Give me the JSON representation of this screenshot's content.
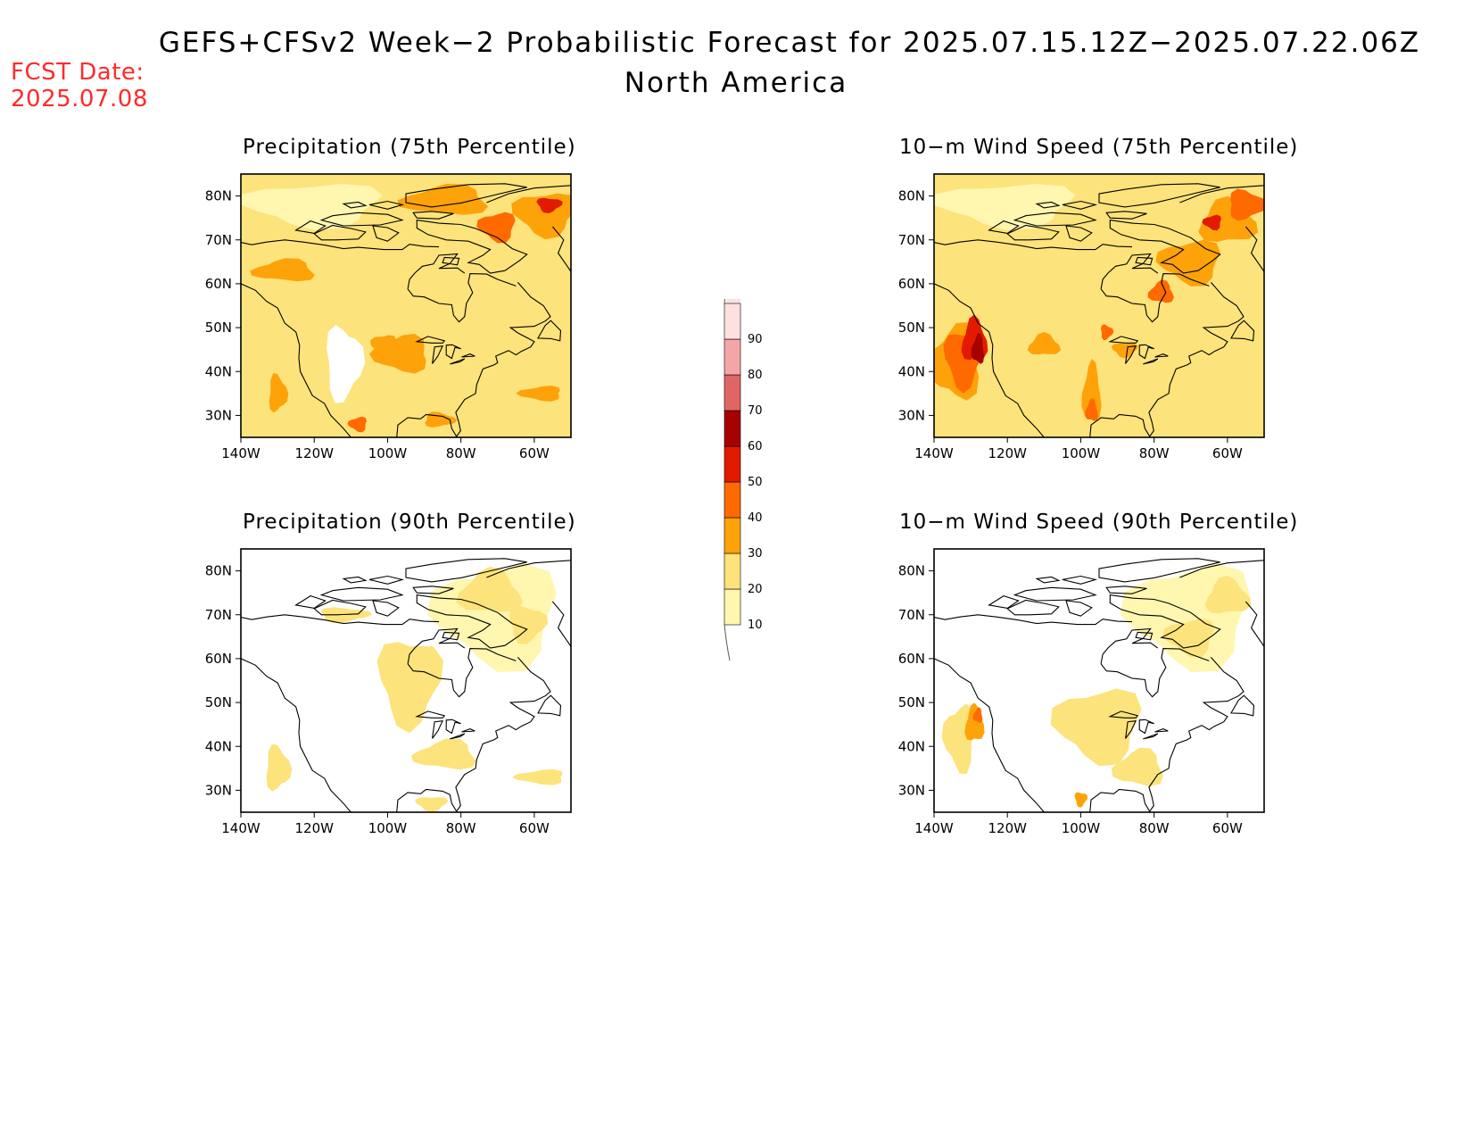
{
  "header": {
    "title": "GEFS+CFSv2 Week−2 Probabilistic Forecast for 2025.07.15.12Z−2025.07.22.06Z",
    "subtitle": "North America",
    "fcst_label": "FCST Date:",
    "fcst_date": "2025.07.08",
    "fcst_color": "#ff2a2a"
  },
  "map": {
    "lon_ticks": [
      "140W",
      "120W",
      "100W",
      "80W",
      "60W"
    ],
    "lat_ticks": [
      "80N",
      "70N",
      "60N",
      "50N",
      "40N",
      "30N"
    ],
    "lon_range": [
      -140,
      -50
    ],
    "lat_range": [
      25,
      85
    ]
  },
  "panels": [
    {
      "id": "precip75",
      "title": "Precipitation (75th Percentile)",
      "base_level": 20
    },
    {
      "id": "wind75",
      "title": "10−m Wind Speed (75th Percentile)",
      "base_level": 20
    },
    {
      "id": "precip90",
      "title": "Precipitation (90th Percentile)",
      "base_level": 0
    },
    {
      "id": "wind90",
      "title": "10−m Wind Speed (90th Percentile)",
      "base_level": 0
    }
  ],
  "colorbar": {
    "labels": [
      "10",
      "20",
      "30",
      "40",
      "50",
      "60",
      "70",
      "80",
      "90"
    ],
    "colors": [
      "#fff6b0",
      "#fde37b",
      "#fea20a",
      "#ff6a00",
      "#e21a00",
      "#a60000",
      "#e06666",
      "#f4a6a6",
      "#fde0e0"
    ]
  }
}
